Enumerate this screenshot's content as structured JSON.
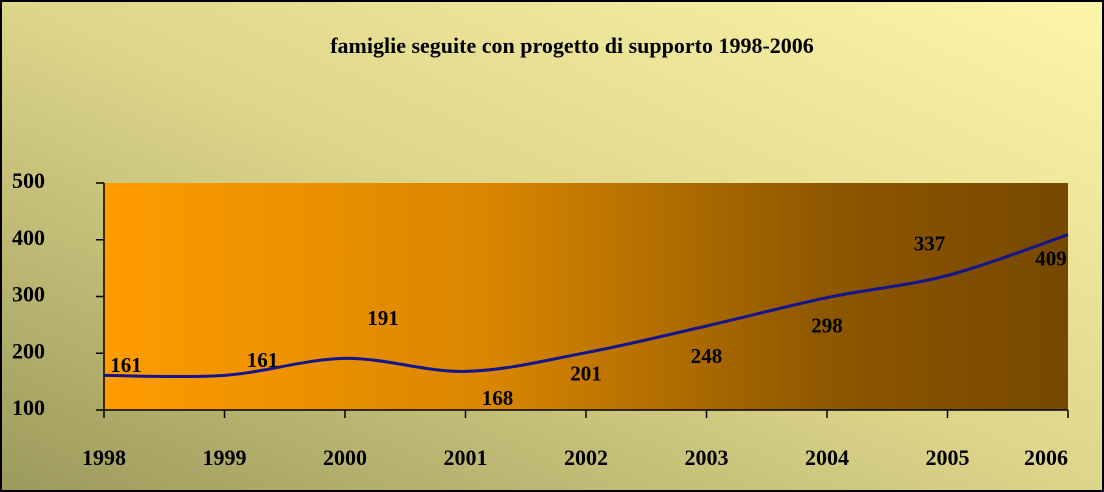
{
  "chart_data": {
    "type": "line",
    "title": "famiglie seguite con progetto di supporto 1998-2006",
    "x": [
      1998,
      1999,
      2000,
      2001,
      2002,
      2003,
      2004,
      2005,
      2006
    ],
    "series": [
      {
        "name": "famiglie",
        "color": "#14148c",
        "values": [
          161,
          161,
          191,
          168,
          201,
          248,
          298,
          337,
          409
        ]
      }
    ],
    "xlim": [
      1998,
      2006
    ],
    "xticks": [
      1998,
      1999,
      2000,
      2001,
      2002,
      2003,
      2004,
      2005,
      2006
    ],
    "ylim": [
      100,
      500
    ],
    "yticks": [
      100,
      200,
      300,
      400,
      500
    ],
    "grid": false,
    "legend": false
  }
}
